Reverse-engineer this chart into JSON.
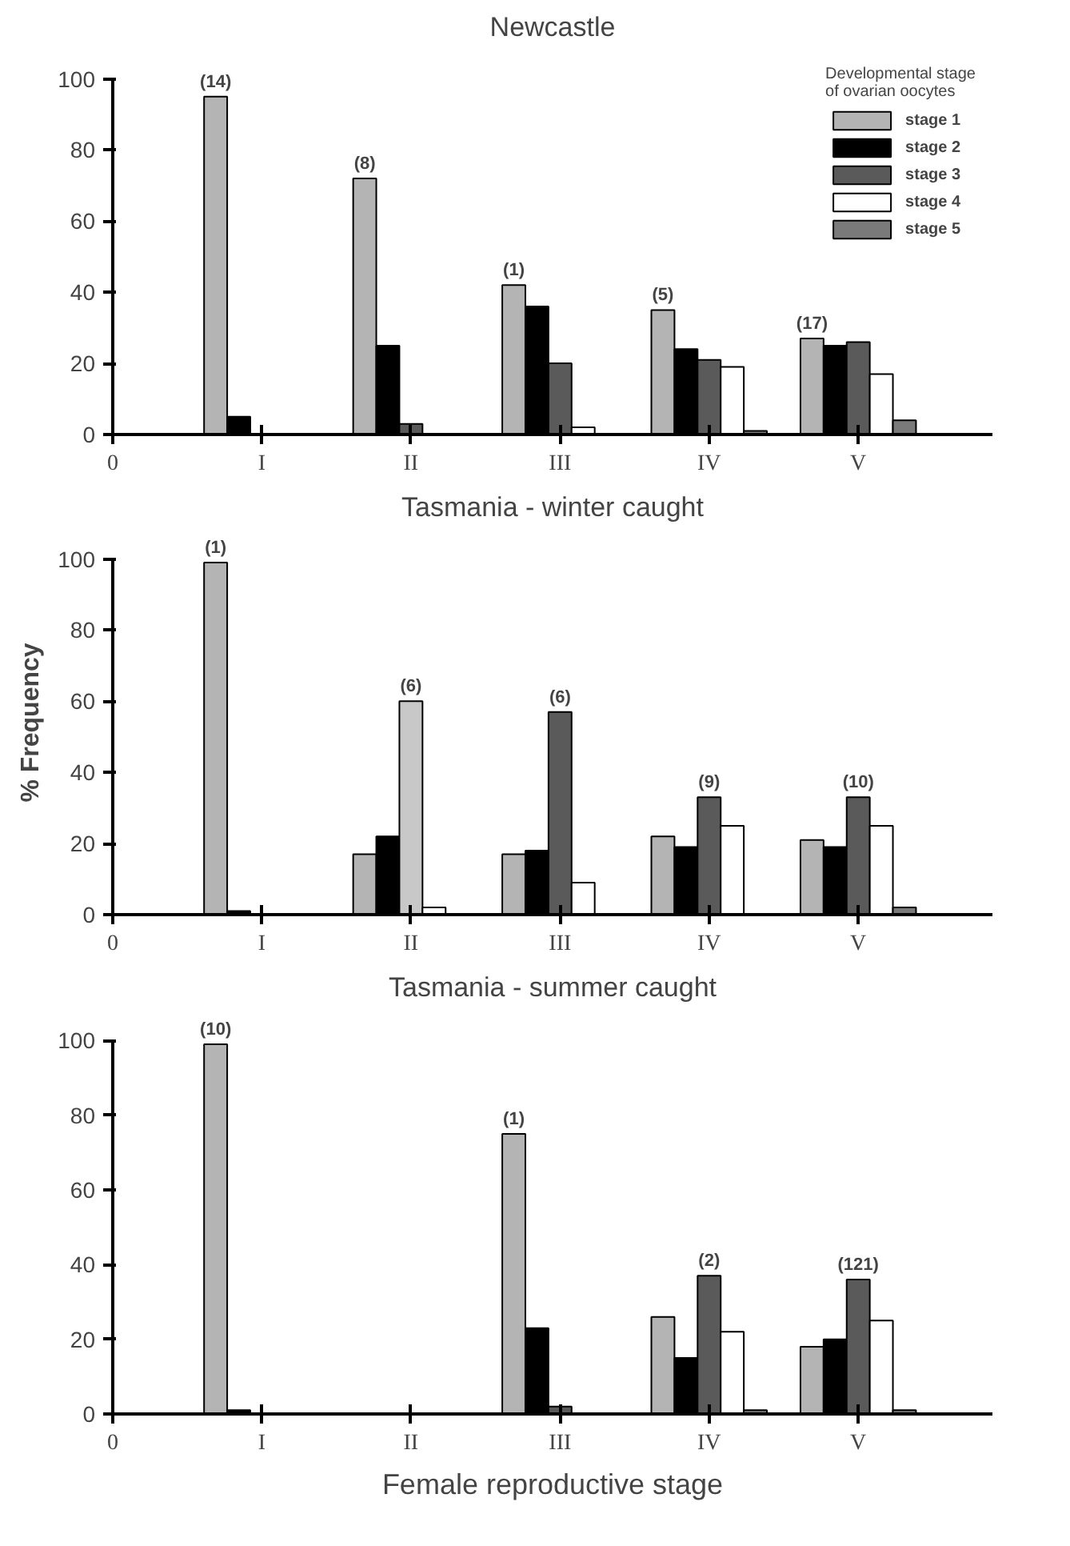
{
  "chart_data": [
    {
      "type": "bar",
      "title": "Newcastle",
      "legend_title": "Developmental stage\nof ovarian oocytes",
      "legend": "top right",
      "grid": false,
      "categories": [
        "0",
        "I",
        "II",
        "III",
        "IV",
        "V"
      ],
      "ylim": [
        0,
        100
      ],
      "yticks": [
        0,
        20,
        40,
        60,
        80,
        100
      ],
      "series": [
        {
          "name": "stage 1",
          "color": "#b4b4b4",
          "values": [
            null,
            95,
            72,
            42,
            35,
            27
          ]
        },
        {
          "name": "stage 2",
          "color": "#000000",
          "values": [
            null,
            5,
            25,
            36,
            24,
            25
          ]
        },
        {
          "name": "stage 3",
          "color": "#5a5a5a",
          "values": [
            null,
            null,
            3,
            20,
            21,
            26
          ]
        },
        {
          "name": "stage 4",
          "color": "#ffffff",
          "values": [
            null,
            null,
            null,
            2,
            19,
            17
          ]
        },
        {
          "name": "stage 5",
          "color": "#7a7a7a",
          "values": [
            null,
            null,
            null,
            null,
            1,
            4
          ]
        }
      ],
      "annotations": [
        "(14)",
        "(8)",
        "(1)",
        "(5)",
        "(17)"
      ]
    },
    {
      "type": "bar",
      "title": "Tasmania - winter caught",
      "ylabel": "% Frequency",
      "legend": false,
      "grid": false,
      "categories": [
        "0",
        "I",
        "II",
        "III",
        "IV",
        "V"
      ],
      "ylim": [
        0,
        100
      ],
      "yticks": [
        0,
        20,
        40,
        60,
        80,
        100
      ],
      "series": [
        {
          "color": "#b4b4b4",
          "values": [
            null,
            99,
            17,
            17,
            22,
            21
          ]
        },
        {
          "color": "#000000",
          "values": [
            null,
            1,
            22,
            18,
            19,
            19
          ]
        },
        {
          "colors": [
            null,
            null,
            "#c8c8c8",
            "#5a5a5a",
            "#5a5a5a",
            "#5a5a5a"
          ],
          "values": [
            null,
            null,
            60,
            57,
            33,
            33
          ]
        },
        {
          "color": "#ffffff",
          "values": [
            null,
            null,
            2,
            9,
            25,
            25
          ]
        },
        {
          "color": "#7a7a7a",
          "values": [
            null,
            null,
            null,
            null,
            null,
            2
          ]
        }
      ],
      "annotations": [
        "(1)",
        "(6)",
        "(6)",
        "(9)",
        "(10)"
      ]
    },
    {
      "type": "bar",
      "title": "Tasmania - summer caught",
      "xlabel": "Female reproductive stage",
      "legend": false,
      "grid": false,
      "categories": [
        "0",
        "I",
        "II",
        "III",
        "IV",
        "V"
      ],
      "ylim": [
        0,
        100
      ],
      "yticks": [
        0,
        20,
        40,
        60,
        80,
        100
      ],
      "series": [
        {
          "color": "#b4b4b4",
          "values": [
            null,
            99,
            null,
            75,
            26,
            18
          ]
        },
        {
          "color": "#000000",
          "values": [
            null,
            1,
            null,
            23,
            15,
            20
          ]
        },
        {
          "color": "#5a5a5a",
          "values": [
            null,
            null,
            null,
            2,
            37,
            36
          ]
        },
        {
          "color": "#ffffff",
          "values": [
            null,
            null,
            null,
            null,
            22,
            25
          ]
        },
        {
          "color": "#7a7a7a",
          "values": [
            null,
            null,
            null,
            null,
            1,
            1
          ]
        }
      ],
      "annotations": [
        "(10)",
        "(1)",
        "(2)",
        "(121)"
      ]
    }
  ]
}
